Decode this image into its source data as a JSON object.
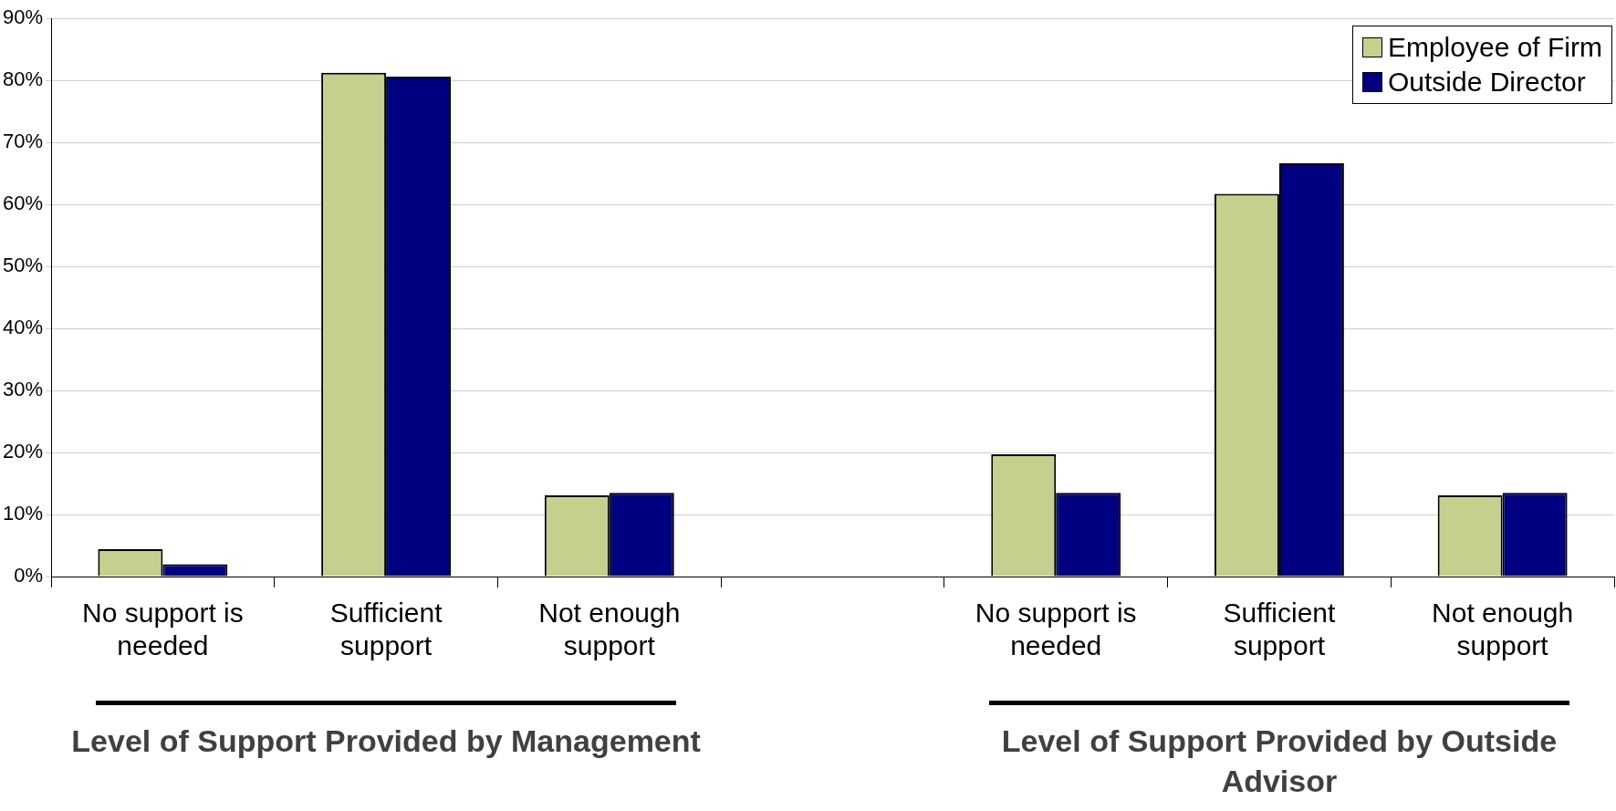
{
  "chart_data": {
    "type": "bar",
    "categories": [
      "No support is needed",
      "Sufficient support",
      "Not enough support",
      null,
      "No support is needed",
      "Sufficient support",
      "Not enough support"
    ],
    "series": [
      {
        "name": "Employee of Firm",
        "color": "#c4d08e",
        "values": [
          4.4,
          81.2,
          13.1,
          null,
          19.7,
          61.7,
          13.1
        ]
      },
      {
        "name": "Outside Director",
        "color": "#000080",
        "values": [
          2.0,
          80.6,
          13.5,
          null,
          13.5,
          66.6,
          13.5
        ]
      }
    ],
    "ylim": [
      0,
      90
    ],
    "yticks": [
      {
        "value": 0,
        "label": "0%"
      },
      {
        "value": 10,
        "label": "10%"
      },
      {
        "value": 20,
        "label": "20%"
      },
      {
        "value": 30,
        "label": "30%"
      },
      {
        "value": 40,
        "label": "40%"
      },
      {
        "value": 50,
        "label": "50%"
      },
      {
        "value": 60,
        "label": "60%"
      },
      {
        "value": 70,
        "label": "70%"
      },
      {
        "value": 80,
        "label": "80%"
      },
      {
        "value": 90,
        "label": "90%"
      }
    ],
    "grid": "y",
    "legend": "top right",
    "annotations": [
      "Level of Support Provided by Management",
      "Level of Support Provided by Outside Advisor"
    ]
  }
}
